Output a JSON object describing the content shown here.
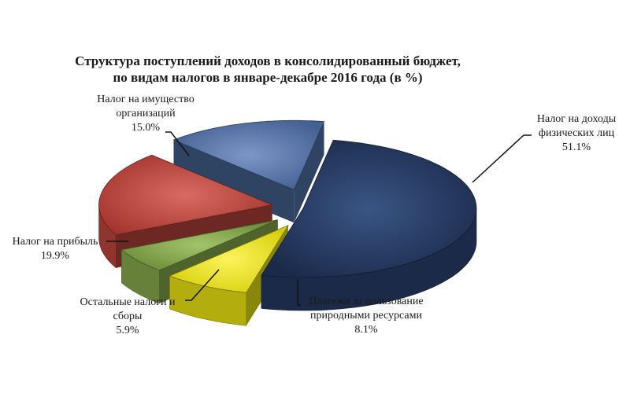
{
  "chart_data": {
    "type": "pie",
    "title_lines": [
      "Структура  поступлений доходов  в консолидированный  бюджет,",
      "по видам налогов в январе-декабре 2016 года (в %)"
    ],
    "slices": [
      {
        "label_lines": [
          "Налог на доходы",
          "физических лиц"
        ],
        "value_text": "51.1%",
        "value": 51.1,
        "color": "#22365d"
      },
      {
        "label_lines": [
          "Платежи за пользование",
          "природными ресурсами"
        ],
        "value_text": "8.1%",
        "value": 8.1,
        "color": "#e6df12"
      },
      {
        "label_lines": [
          "Остальные налоги и",
          "сборы"
        ],
        "value_text": "5.9%",
        "value": 5.9,
        "color": "#84a64a"
      },
      {
        "label_lines": [
          "Налог на прибыль"
        ],
        "value_text": "19.9%",
        "value": 19.9,
        "color": "#b8433c"
      },
      {
        "label_lines": [
          "Налог на имущество",
          "организаций"
        ],
        "value_text": "15.0%",
        "value": 15.0,
        "color": "#4e6fa5"
      }
    ],
    "exploded": true,
    "three_d": true,
    "legend": "none"
  }
}
